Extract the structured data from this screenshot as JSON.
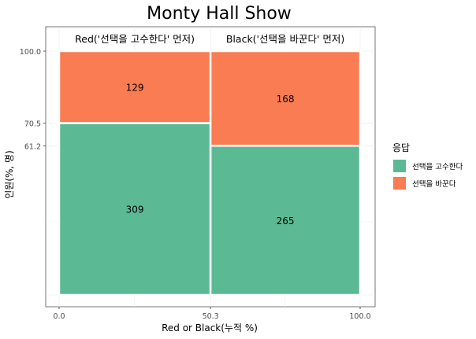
{
  "chart_data": {
    "type": "mosaic",
    "title": "Monty Hall Show",
    "xlabel": "Red or Black(누적 %)",
    "ylabel": "인원(%, 명)",
    "xlim": [
      0,
      100
    ],
    "ylim": [
      0,
      100
    ],
    "x_ticks": [
      "0.0",
      "50.3",
      "100.0"
    ],
    "y_ticks": [
      "100.0",
      "70.5",
      "61.2"
    ],
    "legend": {
      "title": "응답",
      "position": "right",
      "items": [
        {
          "label": "선택을 고수한다",
          "color": "#5BBA94"
        },
        {
          "label": "선택을 바꾼다",
          "color": "#F97C53"
        }
      ]
    },
    "columns": [
      {
        "name": "Red('선택을 고수한다' 먼저)",
        "x_start": 0,
        "x_end": 50.3,
        "segments": [
          {
            "response": "선택을 고수한다",
            "count": 309,
            "y_start": 0,
            "y_end": 70.5
          },
          {
            "response": "선택을 바꾼다",
            "count": 129,
            "y_start": 70.5,
            "y_end": 100
          }
        ]
      },
      {
        "name": "Black('선택을 바꾼다' 먼저)",
        "x_start": 50.3,
        "x_end": 100,
        "segments": [
          {
            "response": "선택을 고수한다",
            "count": 265,
            "y_start": 0,
            "y_end": 61.2
          },
          {
            "response": "선택을 바꾼다",
            "count": 168,
            "y_start": 61.2,
            "y_end": 100
          }
        ]
      }
    ],
    "grid": true
  }
}
